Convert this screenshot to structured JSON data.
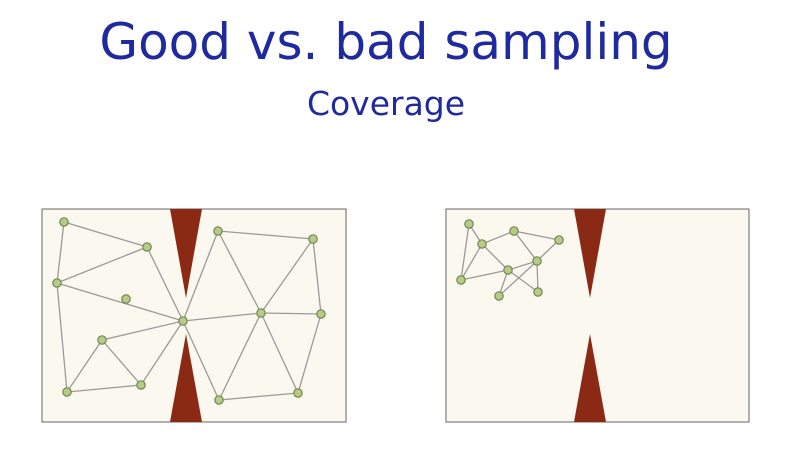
{
  "slide": {
    "title": "Good vs. bad sampling",
    "subtitle": "Coverage"
  },
  "colors": {
    "title": "#1f2a9f",
    "panel_fill": "#fbf8ef",
    "panel_border": "#666666",
    "obstacle": "#8b2a14",
    "node_fill": "#b9c98a",
    "node_stroke": "#6f8a4a",
    "edge": "#999999"
  },
  "diagrams": [
    {
      "name": "good-sampling-roadmap",
      "node_count": 14,
      "edge_count": 26
    },
    {
      "name": "bad-sampling-roadmap",
      "node_count": 10,
      "edge_count": 14
    }
  ]
}
